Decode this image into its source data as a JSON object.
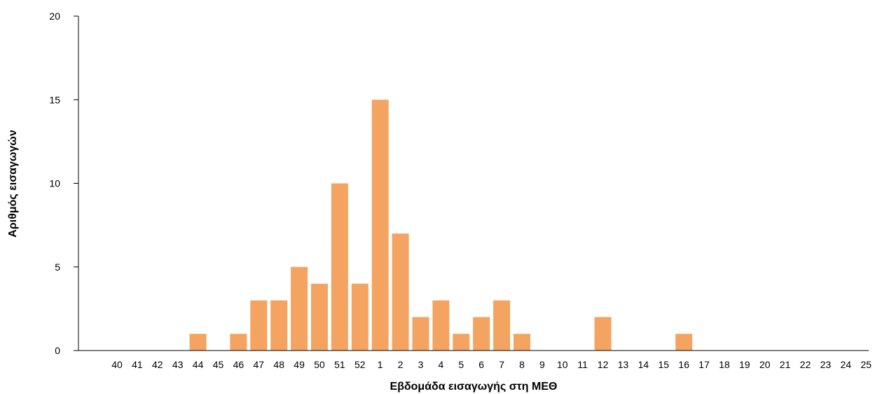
{
  "chart_data": {
    "type": "bar",
    "title": "",
    "xlabel": "Εβδομάδα εισαγωγής στη ΜΕΘ",
    "ylabel": "Αριθμός εισαγωγών",
    "ylim": [
      0,
      20
    ],
    "yticks": [
      0,
      5,
      10,
      15,
      20
    ],
    "grid": false,
    "legend": "none",
    "bar_color": "#F4A460",
    "categories": [
      "40",
      "41",
      "42",
      "43",
      "44",
      "45",
      "46",
      "47",
      "48",
      "49",
      "50",
      "51",
      "52",
      "1",
      "2",
      "3",
      "4",
      "5",
      "6",
      "7",
      "8",
      "9",
      "10",
      "11",
      "12",
      "13",
      "14",
      "15",
      "16",
      "17",
      "18",
      "19",
      "20",
      "21",
      "22",
      "23",
      "24",
      "25"
    ],
    "values": [
      0,
      0,
      0,
      0,
      1,
      0,
      1,
      3,
      3,
      5,
      4,
      10,
      4,
      15,
      7,
      2,
      3,
      1,
      2,
      3,
      1,
      0,
      0,
      0,
      2,
      0,
      0,
      0,
      1,
      0,
      0,
      0,
      0,
      0,
      0,
      0,
      0,
      0
    ]
  }
}
